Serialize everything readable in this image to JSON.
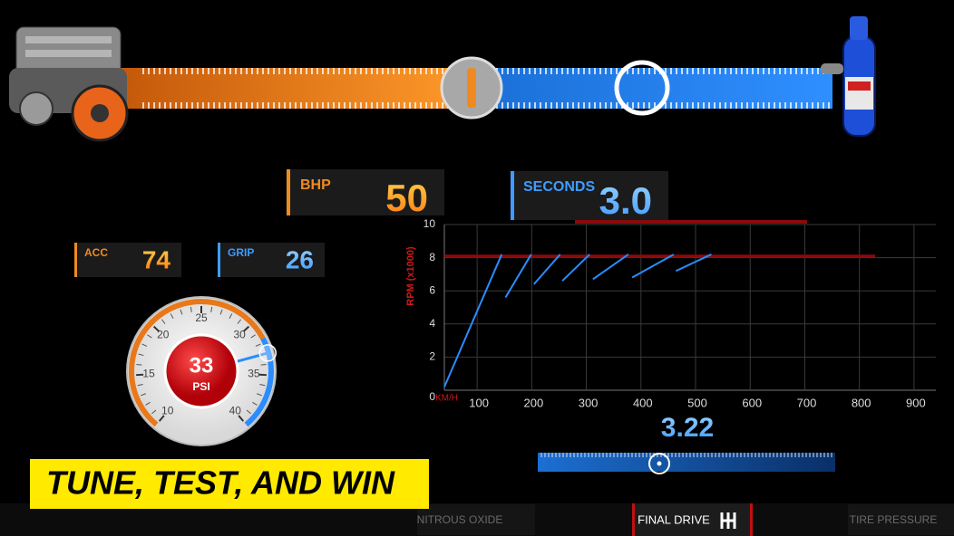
{
  "stats": {
    "bhp": {
      "label": "BHP",
      "value": "50"
    },
    "seconds": {
      "label": "SECONDS",
      "value": "3.0"
    },
    "acc": {
      "label": "ACC",
      "value": "74"
    },
    "grip": {
      "label": "GRIP",
      "value": "26"
    }
  },
  "gauge": {
    "value": 33,
    "unit": "PSI",
    "ticks": [
      10,
      15,
      20,
      25,
      30,
      35,
      40
    ]
  },
  "rpm_chart": {
    "y_label": "RPM (x1000)",
    "x_unit": "KM/H",
    "xlim": [
      40,
      940
    ],
    "ylim": [
      0,
      10
    ],
    "yticks": [
      0,
      2,
      4,
      6,
      8,
      {
        "value": 10,
        "label": "10"
      }
    ],
    "xticks": [
      100,
      200,
      300,
      400,
      500,
      600,
      700,
      800,
      900
    ],
    "redline": 8.1,
    "gears": [
      {
        "x": [
          40,
          145
        ],
        "y": [
          0.2,
          8.2
        ]
      },
      {
        "x": [
          152,
          199
        ],
        "y": [
          5.6,
          8.2
        ]
      },
      {
        "x": [
          204,
          252
        ],
        "y": [
          6.4,
          8.2
        ]
      },
      {
        "x": [
          256,
          306
        ],
        "y": [
          6.6,
          8.2
        ]
      },
      {
        "x": [
          312,
          377
        ],
        "y": [
          6.7,
          8.2
        ]
      },
      {
        "x": [
          384,
          460
        ],
        "y": [
          6.8,
          8.2
        ]
      },
      {
        "x": [
          464,
          529
        ],
        "y": [
          7.2,
          8.2
        ]
      }
    ]
  },
  "final_drive": {
    "value": "3.22"
  },
  "banner": {
    "text": "TUNE, TEST, AND WIN"
  },
  "tabs": [
    "NITROUS OXIDE",
    "FINAL DRIVE",
    "TIRE PRESSURE"
  ]
}
